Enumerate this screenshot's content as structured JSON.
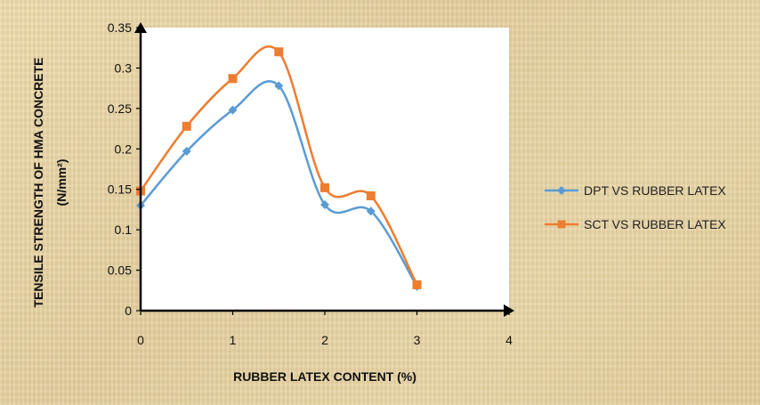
{
  "chart_data": {
    "type": "line",
    "xlabel": "RUBBER LATEX CONTENT (%)",
    "ylabel": [
      "TENSILE STRENGTH OF HMA CONCRETE",
      "(N/mm²)"
    ],
    "xlim": [
      0,
      4
    ],
    "ylim": [
      0,
      0.35
    ],
    "x_ticks": [
      0,
      1,
      2,
      3,
      4
    ],
    "y_ticks": [
      0,
      0.05,
      0.1,
      0.15,
      0.2,
      0.25,
      0.3,
      0.35
    ],
    "x_tick_labels": [
      "0",
      "1",
      "2",
      "3",
      "4"
    ],
    "y_tick_labels": [
      "0",
      "0.05",
      "0.1",
      "0.15",
      "0.2",
      "0.25",
      "0.3",
      "0.35"
    ],
    "grid": false,
    "legend_position": "right",
    "series": [
      {
        "name": "DPT VS RUBBER LATEX",
        "color": "#5b9bd5",
        "marker": "diamond",
        "x": [
          0,
          0.5,
          1,
          1.5,
          2,
          2.5,
          3
        ],
        "y": [
          0.13,
          0.197,
          0.248,
          0.278,
          0.131,
          0.123,
          0.03
        ]
      },
      {
        "name": "SCT VS RUBBER LATEX",
        "color": "#ed7d31",
        "marker": "square",
        "x": [
          0,
          0.5,
          1,
          1.5,
          2,
          2.5,
          3
        ],
        "y": [
          0.148,
          0.228,
          0.287,
          0.32,
          0.152,
          0.142,
          0.032
        ]
      }
    ]
  }
}
